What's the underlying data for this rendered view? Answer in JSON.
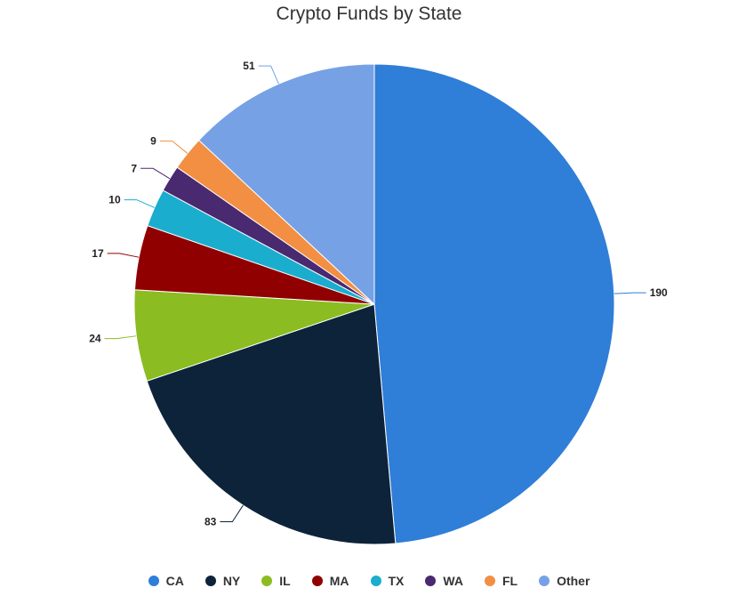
{
  "chart_data": {
    "type": "pie",
    "title": "Crypto Funds by State",
    "categories": [
      "CA",
      "NY",
      "IL",
      "MA",
      "TX",
      "WA",
      "FL",
      "Other"
    ],
    "values": [
      190,
      83,
      24,
      17,
      10,
      7,
      9,
      51
    ],
    "colors": [
      "#2f7ed8",
      "#0d233a",
      "#8bbc21",
      "#910000",
      "#1aadce",
      "#492970",
      "#f28f43",
      "#77a1e5"
    ],
    "legend_position": "bottom",
    "data_labels": true
  }
}
